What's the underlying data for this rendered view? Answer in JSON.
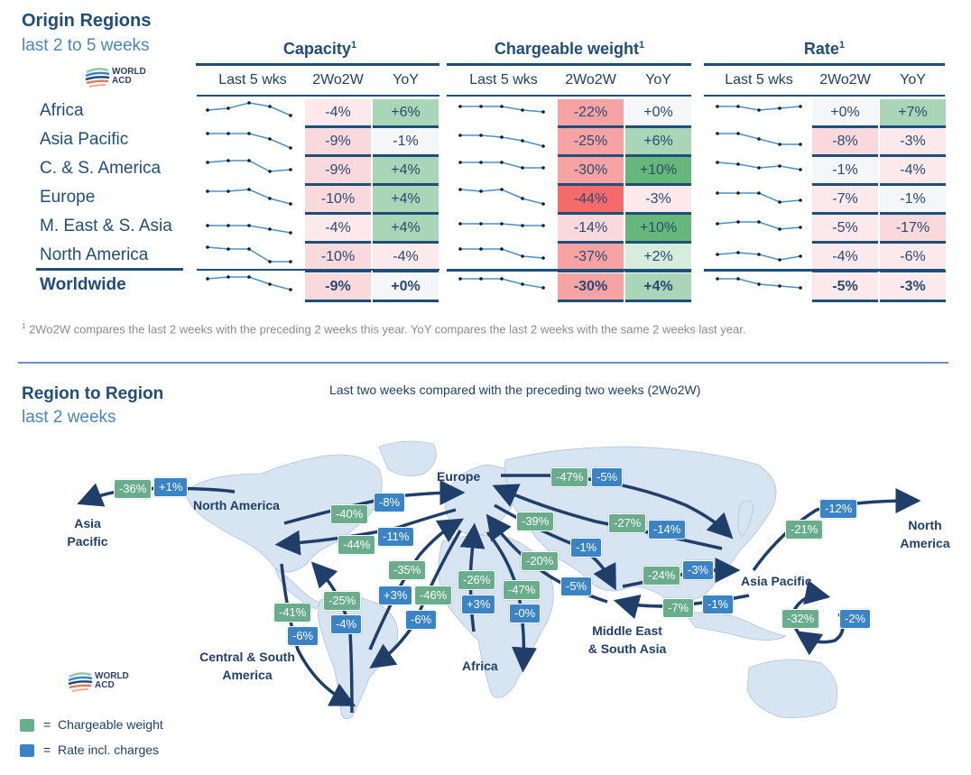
{
  "header": {
    "title": "Origin Regions",
    "subtitle": "last 2 to 5 weeks",
    "logo_text_1": "WORLD",
    "logo_text_2": "ACD"
  },
  "groups": [
    {
      "title": "Capacity",
      "sup": "1",
      "cols": [
        "Last 5 wks",
        "2Wo2W",
        "YoY"
      ]
    },
    {
      "title": "Chargeable weight",
      "sup": "1",
      "cols": [
        "Last 5 wks",
        "2Wo2W",
        "YoY"
      ]
    },
    {
      "title": "Rate",
      "sup": "1",
      "cols": [
        "Last 5 wks",
        "2Wo2W",
        "YoY"
      ]
    }
  ],
  "colors": {
    "neg_strong": "#f56b6b",
    "neg_mid": "#f7a3a3",
    "neg_light": "#f9d9dc",
    "neutral": "#f4f6f8",
    "pos_light": "#d6ecdd",
    "pos_mid": "#a9d6b6",
    "pos_strong": "#66b87a",
    "tag_green": "#6aad8c",
    "tag_blue": "#3a84c6",
    "header_navy": "#1f4e79"
  },
  "chart_data": [
    {
      "type": "table",
      "title": "Origin Regions – last 2 to 5 weeks",
      "rows": [
        "Africa",
        "Asia Pacific",
        "C. & S. America",
        "Europe",
        "M. East & S. Asia",
        "North America",
        "Worldwide"
      ],
      "capacity": {
        "sparkline": [
          [
            5,
            6,
            9,
            7,
            2
          ],
          [
            8,
            8,
            8,
            5,
            0
          ],
          [
            8,
            9,
            9,
            3,
            4
          ],
          [
            8,
            8,
            9,
            4,
            1
          ],
          [
            5,
            5,
            5,
            3,
            1
          ],
          [
            9,
            8,
            8,
            1,
            1
          ],
          [
            8,
            9,
            9,
            5,
            2
          ]
        ],
        "two_wo_two_w": [
          "-4%",
          "-9%",
          "-9%",
          "-10%",
          "-4%",
          "-10%",
          "-9%"
        ],
        "yoy": [
          "+6%",
          "-1%",
          "+4%",
          "+4%",
          "+4%",
          "-4%",
          "+0%"
        ]
      },
      "chargeable_weight": {
        "sparkline": [
          [
            7,
            7,
            7,
            5,
            4
          ],
          [
            7,
            7,
            6,
            4,
            1
          ],
          [
            8,
            8,
            8,
            5,
            5
          ],
          [
            9,
            8,
            9,
            4,
            1
          ],
          [
            6,
            6,
            6,
            5,
            5
          ],
          [
            8,
            8,
            8,
            4,
            3
          ],
          [
            8,
            8,
            8,
            5,
            3
          ]
        ],
        "two_wo_two_w": [
          "-22%",
          "-25%",
          "-30%",
          "-44%",
          "-14%",
          "-37%",
          "-30%"
        ],
        "yoy": [
          "+0%",
          "+6%",
          "+10%",
          "-3%",
          "+10%",
          "+2%",
          "+4%"
        ]
      },
      "rate": {
        "sparkline": [
          [
            7,
            7,
            5,
            6,
            7
          ],
          [
            8,
            8,
            5,
            2,
            2
          ],
          [
            8,
            7,
            5,
            6,
            4
          ],
          [
            7,
            7,
            7,
            2,
            3
          ],
          [
            6,
            7,
            7,
            3,
            4
          ],
          [
            5,
            6,
            5,
            2,
            4
          ],
          [
            8,
            8,
            5,
            4,
            3
          ]
        ],
        "two_wo_two_w": [
          "+0%",
          "-8%",
          "-1%",
          "-7%",
          "-5%",
          "-4%",
          "-5%"
        ],
        "yoy": [
          "+7%",
          "-3%",
          "-4%",
          "-1%",
          "-17%",
          "-6%",
          "-3%"
        ]
      },
      "footnote": "2Wo2W compares the last 2 weeks with the preceding 2 weeks this year. YoY compares the last 2 weeks with the same 2 weeks last year.",
      "footnote_mark": "1"
    },
    {
      "type": "map-flows",
      "title": "Region to Region",
      "subtitle": "last 2 weeks",
      "caption": "Last two weeks compared with the preceding two weeks (2Wo2W)",
      "regions": [
        "North America",
        "Europe",
        "Asia Pacific",
        "Central & South America",
        "Africa",
        "Middle East & South Asia"
      ],
      "region_labels": {
        "asia_pacific_left": [
          "Asia",
          "Pacific"
        ],
        "north_america_top": "North America",
        "europe": "Europe",
        "asia_pacific": "Asia Pacific",
        "north_america_right": [
          "North",
          "America"
        ],
        "csa": [
          "Central & South",
          "America"
        ],
        "africa": "Africa",
        "mesa": [
          "Middle East",
          "& South Asia"
        ]
      },
      "flows": [
        {
          "from": "North America",
          "to": "Asia Pacific",
          "chargeable_weight": "-36%",
          "rate": "+1%"
        },
        {
          "from": "North America",
          "to": "Europe",
          "chargeable_weight": "-40%",
          "rate": "-8%"
        },
        {
          "from": "Europe",
          "to": "North America",
          "chargeable_weight": "-44%",
          "rate": "-11%"
        },
        {
          "from": "Europe",
          "to": "Asia Pacific",
          "chargeable_weight": "-47%",
          "rate": "-5%"
        },
        {
          "from": "Asia Pacific",
          "to": "Europe",
          "chargeable_weight": "-27%",
          "rate": "-14%"
        },
        {
          "from": "Europe",
          "to": "Middle East & South Asia",
          "chargeable_weight": "-39%",
          "rate": "-1%"
        },
        {
          "from": "Middle East & South Asia",
          "to": "Europe",
          "chargeable_weight": "-20%",
          "rate": "-5%"
        },
        {
          "from": "Middle East & South Asia",
          "to": "Asia Pacific",
          "chargeable_weight": "-24%",
          "rate": "-3%"
        },
        {
          "from": "Asia Pacific",
          "to": "Middle East & South Asia",
          "chargeable_weight": "-7%",
          "rate": "-1%"
        },
        {
          "from": "Asia Pacific",
          "to": "North America",
          "chargeable_weight": "-21%",
          "rate": "-12%"
        },
        {
          "from": "Asia Pacific",
          "to": "Asia Pacific",
          "chargeable_weight": "-32%",
          "rate": "-2%"
        },
        {
          "from": "Central & South America",
          "to": "Europe",
          "chargeable_weight": "-35%",
          "rate": "+3%"
        },
        {
          "from": "Europe",
          "to": "Central & South America",
          "chargeable_weight": "-46%",
          "rate": "-6%"
        },
        {
          "from": "Africa",
          "to": "Europe",
          "chargeable_weight": "-26%",
          "rate": "+3%"
        },
        {
          "from": "Europe",
          "to": "Africa",
          "chargeable_weight": "-47%",
          "rate": "-0%"
        },
        {
          "from": "North America",
          "to": "Central & South America",
          "chargeable_weight": "-41%",
          "rate": "-6%"
        },
        {
          "from": "Central & South America",
          "to": "North America",
          "chargeable_weight": "-25%",
          "rate": "-4%"
        }
      ],
      "legend": [
        {
          "label": "Chargeable weight",
          "color": "#6aad8c"
        },
        {
          "label": "Rate incl. charges",
          "color": "#3a84c6"
        }
      ],
      "legend_eq": "="
    }
  ],
  "section2": {
    "title": "Region to Region",
    "subtitle": "last 2 weeks",
    "caption": "Last two weeks compared with the preceding two weeks (2Wo2W)"
  }
}
